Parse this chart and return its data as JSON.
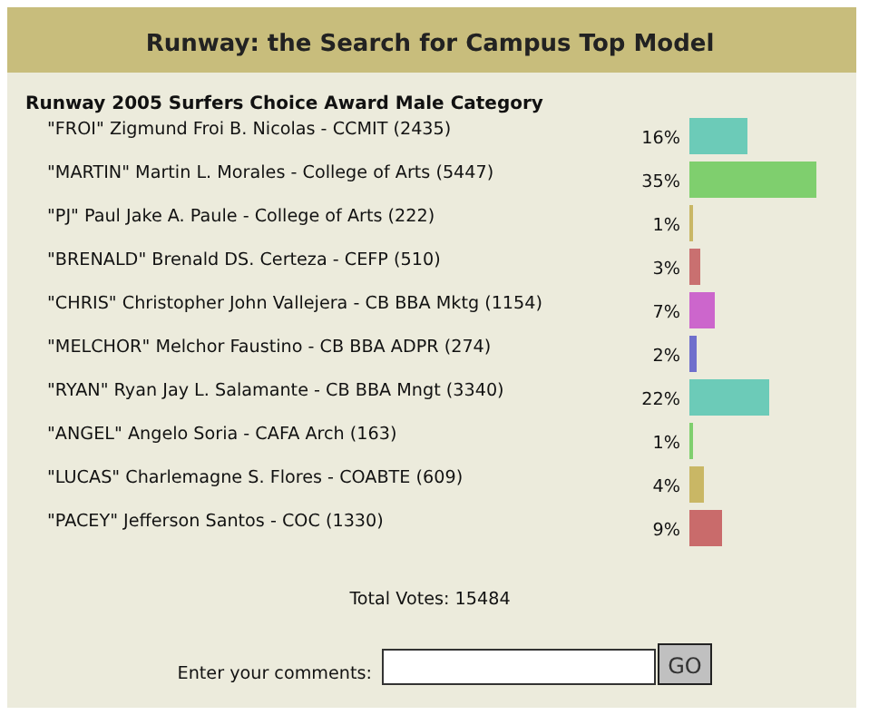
{
  "chart_data": {
    "type": "bar",
    "orientation": "horizontal",
    "title": "Runway: the Search for Campus Top Model",
    "subtitle": "Runway 2005 Surfers Choice Award Male Category",
    "categories": [
      "\"FROI\" Zigmund Froi B. Nicolas - CCMIT (2435)",
      "\"MARTIN\" Martin L. Morales - College of Arts (5447)",
      "\"PJ\" Paul Jake A. Paule - College of Arts (222)",
      "\"BRENALD\" Brenald DS. Certeza - CEFP (510)",
      "\"CHRIS\" Christopher John Vallejera - CB BBA Mktg (1154)",
      "\"MELCHOR\" Melchor Faustino - CB BBA ADPR (274)",
      "\"RYAN\" Ryan Jay L. Salamante - CB BBA Mngt (3340)",
      "\"ANGEL\" Angelo Soria - CAFA Arch (163)",
      "\"LUCAS\" Charlemagne S. Flores - COABTE (609)",
      "\"PACEY\" Jefferson Santos - COC (1330)"
    ],
    "values": [
      16,
      35,
      1,
      3,
      7,
      2,
      22,
      1,
      4,
      9
    ],
    "value_labels": [
      "16%",
      "35%",
      "1%",
      "3%",
      "7%",
      "2%",
      "22%",
      "1%",
      "4%",
      "9%"
    ],
    "colors": [
      "#6ccbb8",
      "#7fcf6e",
      "#c9b765",
      "#c97070",
      "#cc66cc",
      "#6f6fcc",
      "#6ccbb8",
      "#7fcf6e",
      "#c9b765",
      "#c96b6b"
    ],
    "annotations": [
      "Total Votes: 15484",
      "Enter your comments:",
      "GO"
    ]
  }
}
